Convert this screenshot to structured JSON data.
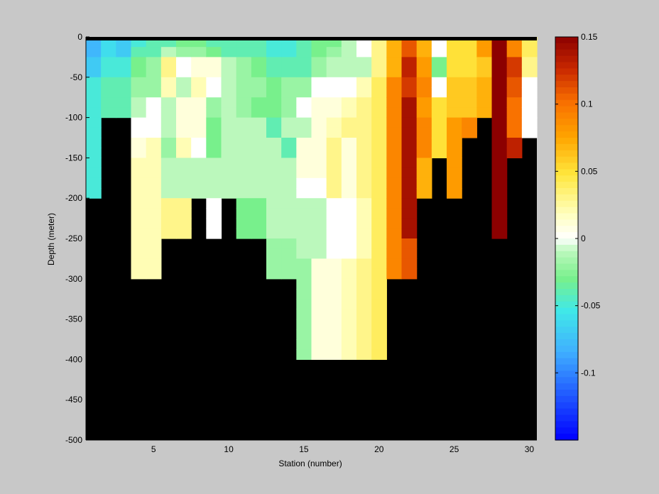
{
  "chart_data": {
    "type": "heatmap",
    "title": "",
    "xlabel": "Station (number)",
    "ylabel": "Depth (meter)",
    "xlim": [
      1,
      31
    ],
    "ylim": [
      -500,
      0
    ],
    "xticks": [
      5,
      10,
      15,
      20,
      25,
      30
    ],
    "yticks": [
      0,
      -50,
      -100,
      -150,
      -200,
      -250,
      -300,
      -350,
      -400,
      -450,
      -500
    ],
    "clim": [
      -0.15,
      0.15
    ],
    "colorbar_ticks": [
      0.15,
      0.1,
      0.05,
      0,
      -0.05,
      -0.1
    ],
    "colormap": "blue-cyan-green-white-yellow-orange-red-darkred",
    "missing_color": "#000000",
    "background_color": "#c8c8c8",
    "stations": [
      1,
      2,
      3,
      4,
      5,
      6,
      7,
      8,
      9,
      10,
      11,
      12,
      13,
      14,
      15,
      16,
      17,
      18,
      19,
      20,
      21,
      22,
      23,
      24,
      25,
      26,
      27,
      28,
      29,
      30,
      31
    ],
    "depth_bins": [
      0,
      -12.5,
      -25,
      -37.5,
      -50,
      -62.5,
      -75,
      -87.5,
      -100,
      -112.5,
      -125,
      -137.5,
      -150,
      -162.5,
      -175,
      -187.5,
      -200,
      -212.5,
      -225,
      -237.5,
      -250,
      -262.5,
      -275,
      -287.5,
      -300,
      -312.5,
      -325,
      -337.5,
      -350,
      -362.5,
      -375,
      -387.5,
      -400
    ],
    "profiles": [
      {
        "station": 1,
        "values": [
          -0.08,
          -0.08,
          -0.07,
          -0.07,
          -0.05,
          -0.05,
          -0.05,
          -0.05,
          -0.05,
          -0.05,
          -0.05,
          -0.05,
          -0.05,
          -0.05,
          -0.05,
          -0.05
        ]
      },
      {
        "station": 2,
        "values": [
          -0.06,
          -0.06,
          -0.05,
          -0.05,
          -0.04,
          -0.04,
          -0.04,
          -0.04
        ]
      },
      {
        "station": 3,
        "values": [
          -0.07,
          -0.07,
          -0.05,
          -0.05,
          -0.04,
          -0.04,
          -0.04,
          -0.04
        ]
      },
      {
        "station": 4,
        "values": [
          -0.05,
          -0.04,
          -0.03,
          -0.03,
          -0.02,
          -0.02,
          -0.01,
          -0.01,
          0.0,
          0.0,
          0.01,
          0.01,
          0.02,
          0.02,
          0.02,
          0.02,
          0.02,
          0.02,
          0.02,
          0.02,
          0.02,
          0.02,
          0.02,
          0.02
        ]
      },
      {
        "station": 5,
        "values": [
          -0.04,
          -0.04,
          -0.02,
          -0.02,
          -0.02,
          -0.02,
          0.0,
          0.0,
          0.0,
          0.0,
          0.02,
          0.02,
          0.02,
          0.02,
          0.02,
          0.02,
          0.02,
          0.02,
          0.02,
          0.02,
          0.02,
          0.02,
          0.02,
          0.02
        ]
      },
      {
        "station": 6,
        "values": [
          -0.04,
          -0.01,
          0.03,
          0.03,
          0.02,
          0.02,
          -0.01,
          -0.01,
          -0.01,
          -0.01,
          -0.02,
          -0.02,
          -0.01,
          -0.01,
          -0.01,
          -0.01,
          0.03,
          0.03,
          0.03,
          0.03
        ]
      },
      {
        "station": 7,
        "values": [
          -0.03,
          -0.02,
          0.0,
          0.0,
          -0.01,
          -0.01,
          0.01,
          0.01,
          0.01,
          0.01,
          0.02,
          0.02,
          -0.01,
          -0.01,
          -0.01,
          -0.01,
          0.03,
          0.03,
          0.03,
          0.03
        ]
      },
      {
        "station": 8,
        "values": [
          -0.03,
          -0.02,
          0.01,
          0.01,
          0.02,
          0.02,
          0.01,
          0.01,
          0.01,
          0.01,
          0.0,
          0.0,
          -0.01,
          -0.01,
          -0.01,
          -0.01
        ]
      },
      {
        "station": 9,
        "values": [
          -0.04,
          -0.03,
          0.01,
          0.01,
          0.0,
          0.0,
          -0.02,
          -0.02,
          -0.03,
          -0.03,
          -0.03,
          -0.03,
          -0.01,
          -0.01,
          -0.01,
          -0.01,
          0.0,
          0.0,
          0.0,
          0.0
        ]
      },
      {
        "station": 10,
        "values": [
          -0.04,
          -0.04,
          -0.01,
          -0.01,
          -0.01,
          -0.01,
          -0.01,
          -0.01,
          -0.01,
          -0.01,
          -0.01,
          -0.01,
          -0.01,
          -0.01,
          -0.01,
          -0.01
        ]
      },
      {
        "station": 11,
        "values": [
          -0.04,
          -0.04,
          -0.02,
          -0.02,
          -0.02,
          -0.02,
          -0.02,
          -0.02,
          -0.01,
          -0.01,
          -0.01,
          -0.01,
          -0.01,
          -0.01,
          -0.01,
          -0.01,
          -0.03,
          -0.03,
          -0.03,
          -0.03
        ]
      },
      {
        "station": 12,
        "values": [
          -0.04,
          -0.04,
          -0.03,
          -0.03,
          -0.02,
          -0.02,
          -0.03,
          -0.03,
          -0.01,
          -0.01,
          -0.01,
          -0.01,
          -0.01,
          -0.01,
          -0.01,
          -0.01,
          -0.03,
          -0.03,
          -0.03,
          -0.03
        ]
      },
      {
        "station": 13,
        "values": [
          -0.05,
          -0.05,
          -0.04,
          -0.04,
          -0.03,
          -0.03,
          -0.03,
          -0.03,
          -0.04,
          -0.04,
          -0.01,
          -0.01,
          -0.01,
          -0.01,
          -0.01,
          -0.01,
          -0.01,
          -0.01,
          -0.01,
          -0.01,
          -0.02,
          -0.02,
          -0.02,
          -0.02
        ]
      },
      {
        "station": 14,
        "values": [
          -0.05,
          -0.05,
          -0.04,
          -0.04,
          -0.02,
          -0.02,
          -0.02,
          -0.02,
          -0.01,
          -0.01,
          -0.04,
          -0.04,
          -0.01,
          -0.01,
          -0.01,
          -0.01,
          -0.01,
          -0.01,
          -0.01,
          -0.01,
          -0.02,
          -0.02,
          -0.02,
          -0.02
        ]
      },
      {
        "station": 15,
        "values": [
          -0.04,
          -0.04,
          -0.04,
          -0.04,
          -0.02,
          -0.02,
          0.0,
          0.0,
          -0.01,
          -0.01,
          0.01,
          0.01,
          0.01,
          0.01,
          0.0,
          0.0,
          -0.01,
          -0.01,
          -0.01,
          -0.01,
          -0.01,
          -0.01,
          -0.02,
          -0.02,
          -0.02,
          -0.02,
          -0.02,
          -0.02,
          -0.02,
          -0.02,
          -0.02,
          -0.02
        ]
      },
      {
        "station": 16,
        "values": [
          -0.03,
          -0.03,
          -0.02,
          -0.02,
          0.0,
          0.0,
          0.01,
          0.01,
          0.01,
          0.01,
          0.01,
          0.01,
          0.01,
          0.01,
          0.0,
          0.0,
          -0.01,
          -0.01,
          -0.01,
          -0.01,
          -0.01,
          -0.01,
          0.01,
          0.01,
          0.01,
          0.01,
          0.01,
          0.01,
          0.01,
          0.01,
          0.01,
          0.01
        ]
      },
      {
        "station": 17,
        "values": [
          -0.03,
          -0.02,
          -0.01,
          -0.01,
          0.0,
          0.0,
          0.01,
          0.01,
          0.02,
          0.02,
          0.03,
          0.03,
          0.03,
          0.03,
          0.03,
          0.03,
          0.0,
          0.0,
          0.0,
          0.0,
          0.0,
          0.0,
          0.01,
          0.01,
          0.01,
          0.01,
          0.01,
          0.01,
          0.01,
          0.01,
          0.01,
          0.01
        ]
      },
      {
        "station": 18,
        "values": [
          -0.01,
          -0.01,
          -0.01,
          -0.01,
          0.0,
          0.0,
          0.02,
          0.02,
          0.03,
          0.03,
          0.01,
          0.01,
          0.01,
          0.01,
          0.01,
          0.01,
          0.0,
          0.0,
          0.0,
          0.0,
          0.0,
          0.0,
          0.02,
          0.02,
          0.02,
          0.02,
          0.02,
          0.02,
          0.02,
          0.02,
          0.02,
          0.02
        ]
      },
      {
        "station": 19,
        "values": [
          0.0,
          0.0,
          -0.01,
          -0.01,
          0.02,
          0.02,
          0.03,
          0.03,
          0.03,
          0.03,
          0.03,
          0.03,
          0.03,
          0.03,
          0.03,
          0.03,
          0.02,
          0.02,
          0.02,
          0.02,
          0.02,
          0.02,
          0.03,
          0.03,
          0.03,
          0.03,
          0.03,
          0.03,
          0.03,
          0.03,
          0.03,
          0.03
        ]
      },
      {
        "station": 20,
        "values": [
          0.03,
          0.03,
          0.03,
          0.03,
          0.04,
          0.04,
          0.04,
          0.04,
          0.04,
          0.04,
          0.04,
          0.04,
          0.04,
          0.04,
          0.04,
          0.04,
          0.04,
          0.04,
          0.04,
          0.04,
          0.04,
          0.04,
          0.04,
          0.04,
          0.04,
          0.04,
          0.04,
          0.04,
          0.04,
          0.04,
          0.04,
          0.04
        ]
      },
      {
        "station": 21,
        "values": [
          0.07,
          0.07,
          0.07,
          0.07,
          0.09,
          0.09,
          0.09,
          0.09,
          0.09,
          0.09,
          0.09,
          0.09,
          0.09,
          0.09,
          0.09,
          0.09,
          0.09,
          0.09,
          0.09,
          0.09,
          0.09,
          0.09,
          0.09,
          0.09
        ]
      },
      {
        "station": 22,
        "values": [
          0.11,
          0.11,
          0.13,
          0.13,
          0.12,
          0.12,
          0.14,
          0.14,
          0.14,
          0.14,
          0.14,
          0.14,
          0.14,
          0.14,
          0.14,
          0.14,
          0.14,
          0.14,
          0.14,
          0.14,
          0.11,
          0.11,
          0.11,
          0.11
        ]
      },
      {
        "station": 23,
        "values": [
          0.07,
          0.07,
          0.08,
          0.08,
          0.09,
          0.09,
          0.08,
          0.08,
          0.09,
          0.09,
          0.09,
          0.09,
          0.07,
          0.07,
          0.07,
          0.07
        ]
      },
      {
        "station": 24,
        "values": [
          0.0,
          0.0,
          -0.03,
          -0.03,
          0.0,
          0.0,
          0.05,
          0.05,
          0.05,
          0.05,
          0.05,
          0.05
        ]
      },
      {
        "station": 25,
        "values": [
          0.05,
          0.05,
          0.05,
          0.05,
          0.06,
          0.06,
          0.06,
          0.06,
          0.08,
          0.08,
          0.08,
          0.08,
          0.08,
          0.08,
          0.08,
          0.08
        ]
      },
      {
        "station": 26,
        "values": [
          0.05,
          0.05,
          0.05,
          0.05,
          0.06,
          0.06,
          0.06,
          0.06,
          0.09,
          0.09
        ]
      },
      {
        "station": 27,
        "values": [
          0.08,
          0.08,
          0.06,
          0.06,
          0.07,
          0.07,
          0.07,
          0.07
        ]
      },
      {
        "station": 28,
        "values": [
          0.15,
          0.15,
          0.15,
          0.15,
          0.15,
          0.15,
          0.15,
          0.15,
          0.15,
          0.15,
          0.15,
          0.15,
          0.15,
          0.15,
          0.15,
          0.15,
          0.15,
          0.15,
          0.15,
          0.15
        ]
      },
      {
        "station": 29,
        "values": [
          0.09,
          0.09,
          0.12,
          0.12,
          0.11,
          0.11,
          0.1,
          0.1,
          0.1,
          0.1,
          0.13,
          0.13
        ]
      },
      {
        "station": 30,
        "values": [
          0.04,
          0.04,
          0.03,
          0.03,
          0.0,
          0.0,
          0.0,
          0.0,
          0.0,
          0.0
        ]
      }
    ]
  },
  "axes": {
    "xlabel": "Station (number)",
    "ylabel": "Depth (meter)",
    "xtick_labels": [
      "5",
      "10",
      "15",
      "20",
      "25",
      "30"
    ],
    "ytick_labels": [
      "0",
      "-50",
      "-100",
      "-150",
      "-200",
      "-250",
      "-300",
      "-350",
      "-400",
      "-450",
      "-500"
    ],
    "colorbar_tick_labels": [
      "0.15",
      "0.1",
      "0.05",
      "0",
      "-0.05",
      "-0.1"
    ]
  }
}
